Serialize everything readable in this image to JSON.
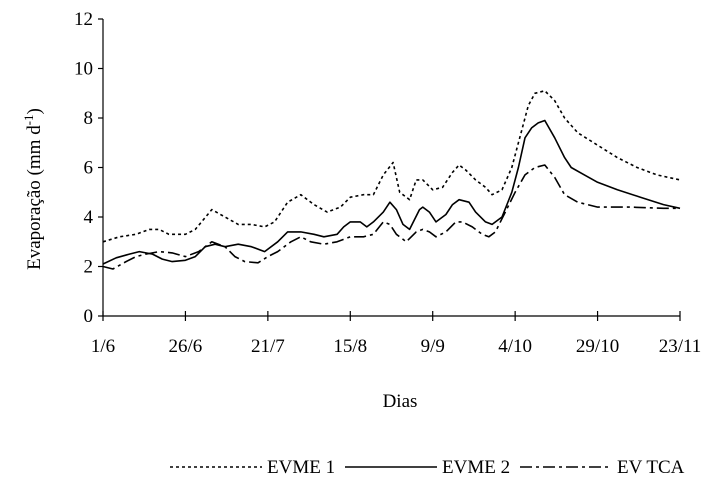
{
  "chart_data": {
    "type": "line",
    "title": "",
    "xlabel": "Dias",
    "ylabel": {
      "main": "Evaporação (mm d",
      "sup": "-1",
      "close": ")"
    },
    "x_ticks": [
      "1/6",
      "26/6",
      "21/7",
      "15/8",
      "9/9",
      "4/10",
      "29/10",
      "23/11"
    ],
    "x_range": [
      0,
      175
    ],
    "y_ticks": [
      "0",
      "2",
      "4",
      "6",
      "8",
      "10",
      "12"
    ],
    "ylim": [
      0,
      12
    ],
    "grid": false,
    "legend_position": "bottom",
    "series": [
      {
        "name": "EVME 1",
        "style": "dotted",
        "points": [
          [
            0,
            3.0
          ],
          [
            5,
            3.2
          ],
          [
            10,
            3.3
          ],
          [
            14,
            3.5
          ],
          [
            17,
            3.5
          ],
          [
            20,
            3.3
          ],
          [
            25,
            3.3
          ],
          [
            28,
            3.5
          ],
          [
            33,
            4.3
          ],
          [
            37,
            4.0
          ],
          [
            41,
            3.7
          ],
          [
            45,
            3.7
          ],
          [
            49,
            3.6
          ],
          [
            52,
            3.8
          ],
          [
            56,
            4.6
          ],
          [
            60,
            4.9
          ],
          [
            64,
            4.5
          ],
          [
            68,
            4.2
          ],
          [
            72,
            4.4
          ],
          [
            75,
            4.8
          ],
          [
            79,
            4.9
          ],
          [
            82,
            4.9
          ],
          [
            85,
            5.7
          ],
          [
            88,
            6.2
          ],
          [
            90,
            5.0
          ],
          [
            93,
            4.7
          ],
          [
            95,
            5.5
          ],
          [
            97,
            5.5
          ],
          [
            100,
            5.1
          ],
          [
            103,
            5.2
          ],
          [
            106,
            5.8
          ],
          [
            108,
            6.1
          ],
          [
            110,
            5.9
          ],
          [
            113,
            5.5
          ],
          [
            116,
            5.2
          ],
          [
            118,
            4.9
          ],
          [
            121,
            5.1
          ],
          [
            124,
            6.0
          ],
          [
            127,
            7.5
          ],
          [
            129,
            8.5
          ],
          [
            131,
            9.0
          ],
          [
            134,
            9.1
          ],
          [
            137,
            8.7
          ],
          [
            140,
            8.0
          ],
          [
            144,
            7.4
          ],
          [
            150,
            6.9
          ],
          [
            156,
            6.4
          ],
          [
            162,
            6.0
          ],
          [
            168,
            5.7
          ],
          [
            175,
            5.5
          ]
        ]
      },
      {
        "name": "EVME 2",
        "style": "solid",
        "points": [
          [
            0,
            2.1
          ],
          [
            4,
            2.35
          ],
          [
            8,
            2.5
          ],
          [
            11,
            2.6
          ],
          [
            15,
            2.5
          ],
          [
            18,
            2.3
          ],
          [
            21,
            2.2
          ],
          [
            25,
            2.25
          ],
          [
            28,
            2.4
          ],
          [
            31,
            2.8
          ],
          [
            34,
            2.9
          ],
          [
            37,
            2.8
          ],
          [
            41,
            2.9
          ],
          [
            45,
            2.8
          ],
          [
            49,
            2.6
          ],
          [
            53,
            3.0
          ],
          [
            56,
            3.4
          ],
          [
            60,
            3.4
          ],
          [
            64,
            3.3
          ],
          [
            67,
            3.2
          ],
          [
            71,
            3.3
          ],
          [
            73,
            3.6
          ],
          [
            75,
            3.8
          ],
          [
            78,
            3.8
          ],
          [
            80,
            3.6
          ],
          [
            82,
            3.8
          ],
          [
            85,
            4.2
          ],
          [
            87,
            4.6
          ],
          [
            89,
            4.3
          ],
          [
            91,
            3.7
          ],
          [
            93,
            3.5
          ],
          [
            96,
            4.3
          ],
          [
            97,
            4.4
          ],
          [
            99,
            4.2
          ],
          [
            101,
            3.8
          ],
          [
            104,
            4.1
          ],
          [
            106,
            4.5
          ],
          [
            108,
            4.7
          ],
          [
            111,
            4.6
          ],
          [
            113,
            4.2
          ],
          [
            116,
            3.8
          ],
          [
            118,
            3.7
          ],
          [
            121,
            4.0
          ],
          [
            124,
            5.0
          ],
          [
            126,
            6.0
          ],
          [
            128,
            7.2
          ],
          [
            130,
            7.6
          ],
          [
            132,
            7.8
          ],
          [
            134,
            7.9
          ],
          [
            137,
            7.2
          ],
          [
            140,
            6.4
          ],
          [
            142,
            6.0
          ],
          [
            146,
            5.7
          ],
          [
            150,
            5.4
          ],
          [
            156,
            5.1
          ],
          [
            163,
            4.8
          ],
          [
            170,
            4.5
          ],
          [
            175,
            4.35
          ]
        ]
      },
      {
        "name": "EV TCA",
        "style": "dash-dot",
        "points": [
          [
            0,
            2.0
          ],
          [
            3,
            1.9
          ],
          [
            7,
            2.2
          ],
          [
            10,
            2.4
          ],
          [
            13,
            2.5
          ],
          [
            17,
            2.6
          ],
          [
            21,
            2.55
          ],
          [
            25,
            2.4
          ],
          [
            29,
            2.6
          ],
          [
            33,
            3.0
          ],
          [
            37,
            2.8
          ],
          [
            40,
            2.4
          ],
          [
            43,
            2.2
          ],
          [
            47,
            2.15
          ],
          [
            50,
            2.4
          ],
          [
            53,
            2.6
          ],
          [
            57,
            3.0
          ],
          [
            60,
            3.2
          ],
          [
            63,
            3.0
          ],
          [
            67,
            2.9
          ],
          [
            71,
            3.0
          ],
          [
            75,
            3.2
          ],
          [
            79,
            3.2
          ],
          [
            82,
            3.3
          ],
          [
            85,
            3.8
          ],
          [
            87,
            3.7
          ],
          [
            89,
            3.3
          ],
          [
            92,
            3.0
          ],
          [
            95,
            3.4
          ],
          [
            97,
            3.5
          ],
          [
            99,
            3.4
          ],
          [
            101,
            3.2
          ],
          [
            104,
            3.4
          ],
          [
            107,
            3.8
          ],
          [
            109,
            3.8
          ],
          [
            112,
            3.6
          ],
          [
            115,
            3.3
          ],
          [
            117,
            3.2
          ],
          [
            119,
            3.4
          ],
          [
            122,
            4.2
          ],
          [
            125,
            5.0
          ],
          [
            128,
            5.7
          ],
          [
            131,
            6.0
          ],
          [
            134,
            6.1
          ],
          [
            137,
            5.6
          ],
          [
            140,
            4.9
          ],
          [
            144,
            4.6
          ],
          [
            150,
            4.4
          ],
          [
            160,
            4.4
          ],
          [
            170,
            4.35
          ],
          [
            175,
            4.35
          ]
        ]
      }
    ]
  }
}
